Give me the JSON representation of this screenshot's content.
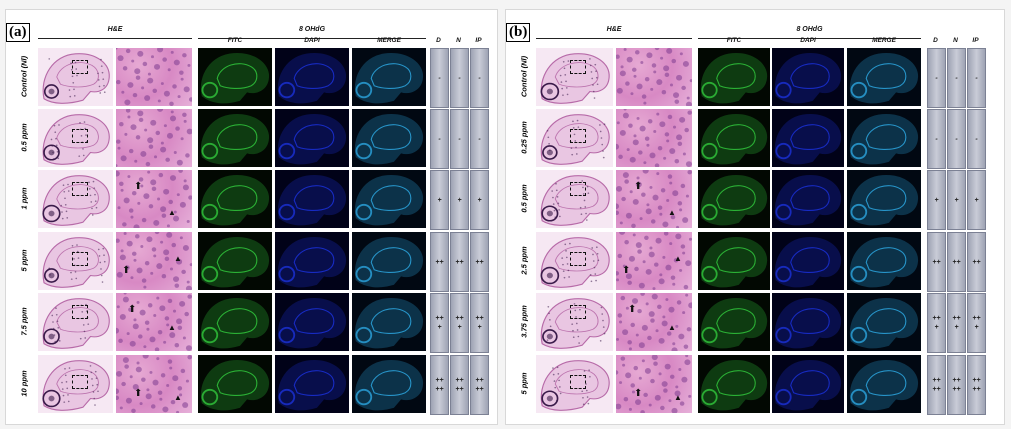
{
  "panels": [
    {
      "label": "(a)",
      "group_he": "H&E",
      "group_ohdg": "8 OHdG",
      "col_fitc": "FITC",
      "col_dapi": "DAPI",
      "col_merge": "MERGE",
      "col_d": "D",
      "col_n": "N",
      "col_ip": "IP",
      "rows": [
        {
          "label": "Control (Nl)",
          "d": "-",
          "n": "-",
          "ip": "-"
        },
        {
          "label": "0.5 ppm",
          "d": "-",
          "n": "-",
          "ip": "-"
        },
        {
          "label": "1 ppm",
          "d": "+",
          "n": "+",
          "ip": "+"
        },
        {
          "label": "5 ppm",
          "d": "++",
          "n": "++",
          "ip": "++"
        },
        {
          "label": "7.5 ppm",
          "d": "++\n+",
          "n": "++\n+",
          "ip": "++\n+"
        },
        {
          "label": "10 ppm",
          "d": "++\n++",
          "n": "++\n++",
          "ip": "++\n++"
        }
      ]
    },
    {
      "label": "(b)",
      "group_he": "H&E",
      "group_ohdg": "8 OHdG",
      "col_fitc": "FITC",
      "col_dapi": "DAPI",
      "col_merge": "MERGE",
      "col_d": "D",
      "col_n": "N",
      "col_ip": "IP",
      "rows": [
        {
          "label": "Control (Nl)",
          "d": "-",
          "n": "-",
          "ip": "-"
        },
        {
          "label": "0.25 ppm",
          "d": "-",
          "n": "-",
          "ip": "-"
        },
        {
          "label": "0.5 ppm",
          "d": "+",
          "n": "+",
          "ip": "+"
        },
        {
          "label": "2.5 ppm",
          "d": "++",
          "n": "++",
          "ip": "++"
        },
        {
          "label": "3.75 ppm",
          "d": "++\n+",
          "n": "++\n+",
          "ip": "++\n+"
        },
        {
          "label": "5 ppm",
          "d": "++\n++",
          "n": "++\n++",
          "ip": "++\n++"
        }
      ]
    }
  ],
  "colors": {
    "he_tissue": "#b76aa8",
    "he_zoom": "#d889c4",
    "fitc": "#2fbf3a",
    "dapi": "#1a2fd0",
    "merge": "#2a9fd6",
    "grade_cell": "#b7bac8"
  },
  "marks": {
    "arrow": "⬆",
    "arrowhead": "▲"
  }
}
